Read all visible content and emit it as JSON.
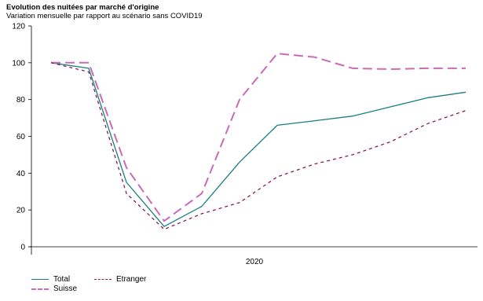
{
  "title": "Evolution des nuitées par marché d'origine",
  "subtitle": "Variation mensuelle par rapport au scénario sans COVID19",
  "chart_data": {
    "type": "line",
    "title": "Evolution des nuitées par marché d'origine",
    "subtitle": "Variation mensuelle par rapport au scénario sans COVID19",
    "x": [
      1,
      2,
      3,
      4,
      5,
      6,
      7,
      8,
      9,
      10,
      11,
      12
    ],
    "xlabel": "",
    "x_group_label": "2020",
    "ylabel": "",
    "ylim": [
      0,
      120
    ],
    "yticks": [
      0,
      20,
      40,
      60,
      80,
      100,
      120
    ],
    "grid": false,
    "legend_position": "bottom-left",
    "series": [
      {
        "name": "Total",
        "color": "#1a7f7f",
        "dash": "solid",
        "values": [
          100,
          97,
          35,
          11,
          22,
          46,
          66,
          68.5,
          71,
          76,
          81,
          84
        ]
      },
      {
        "name": "Suisse",
        "color": "#c96bb8",
        "dash": "long",
        "values": [
          100,
          100,
          43,
          14,
          29,
          80,
          105,
          103,
          97,
          96.5,
          97,
          97
        ]
      },
      {
        "name": "Etranger",
        "color": "#8b1a55",
        "dash": "short",
        "values": [
          100,
          95,
          29,
          9.5,
          18,
          24,
          38,
          45,
          50,
          57,
          67,
          74
        ]
      }
    ]
  }
}
